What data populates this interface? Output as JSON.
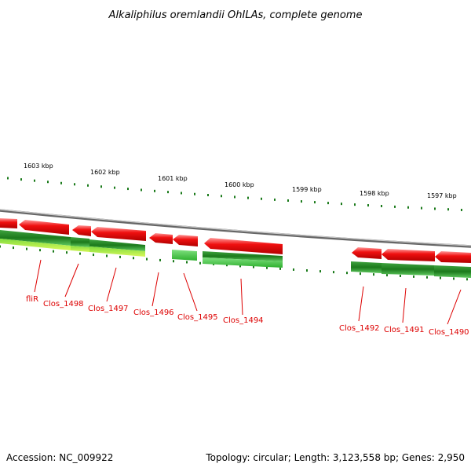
{
  "title": "Alkaliphilus oremlandii OhILAs, complete genome",
  "footer": {
    "accession": "Accession: NC_009922",
    "summary": "Topology: circular; Length: 3,123,558 bp; Genes: 2,950"
  },
  "scale_labels": [
    "1603 kbp",
    "1602 kbp",
    "1601 kbp",
    "1600 kbp",
    "1599 kbp",
    "1598 kbp",
    "1597 kbp"
  ],
  "genes": [
    {
      "label": "fliR",
      "strand": "forward"
    },
    {
      "label": "Clos_1498",
      "strand": "forward"
    },
    {
      "label": "Clos_1497",
      "strand": "forward"
    },
    {
      "label": "Clos_1496",
      "strand": "forward"
    },
    {
      "label": "Clos_1495",
      "strand": "forward"
    },
    {
      "label": "Clos_1494",
      "strand": "forward"
    },
    {
      "label": "Clos_1492",
      "strand": "forward"
    },
    {
      "label": "Clos_1491",
      "strand": "forward"
    },
    {
      "label": "Clos_1490",
      "strand": "forward"
    }
  ],
  "colors": {
    "cds": "#e81010",
    "gc_skew_high": "#1f8a1f",
    "gc_skew_mid": "#40c040",
    "gc_skew_light": "#c8f040",
    "backbone": "#888888",
    "ticks": "#1a7a1a",
    "labels": "#dd0000"
  }
}
